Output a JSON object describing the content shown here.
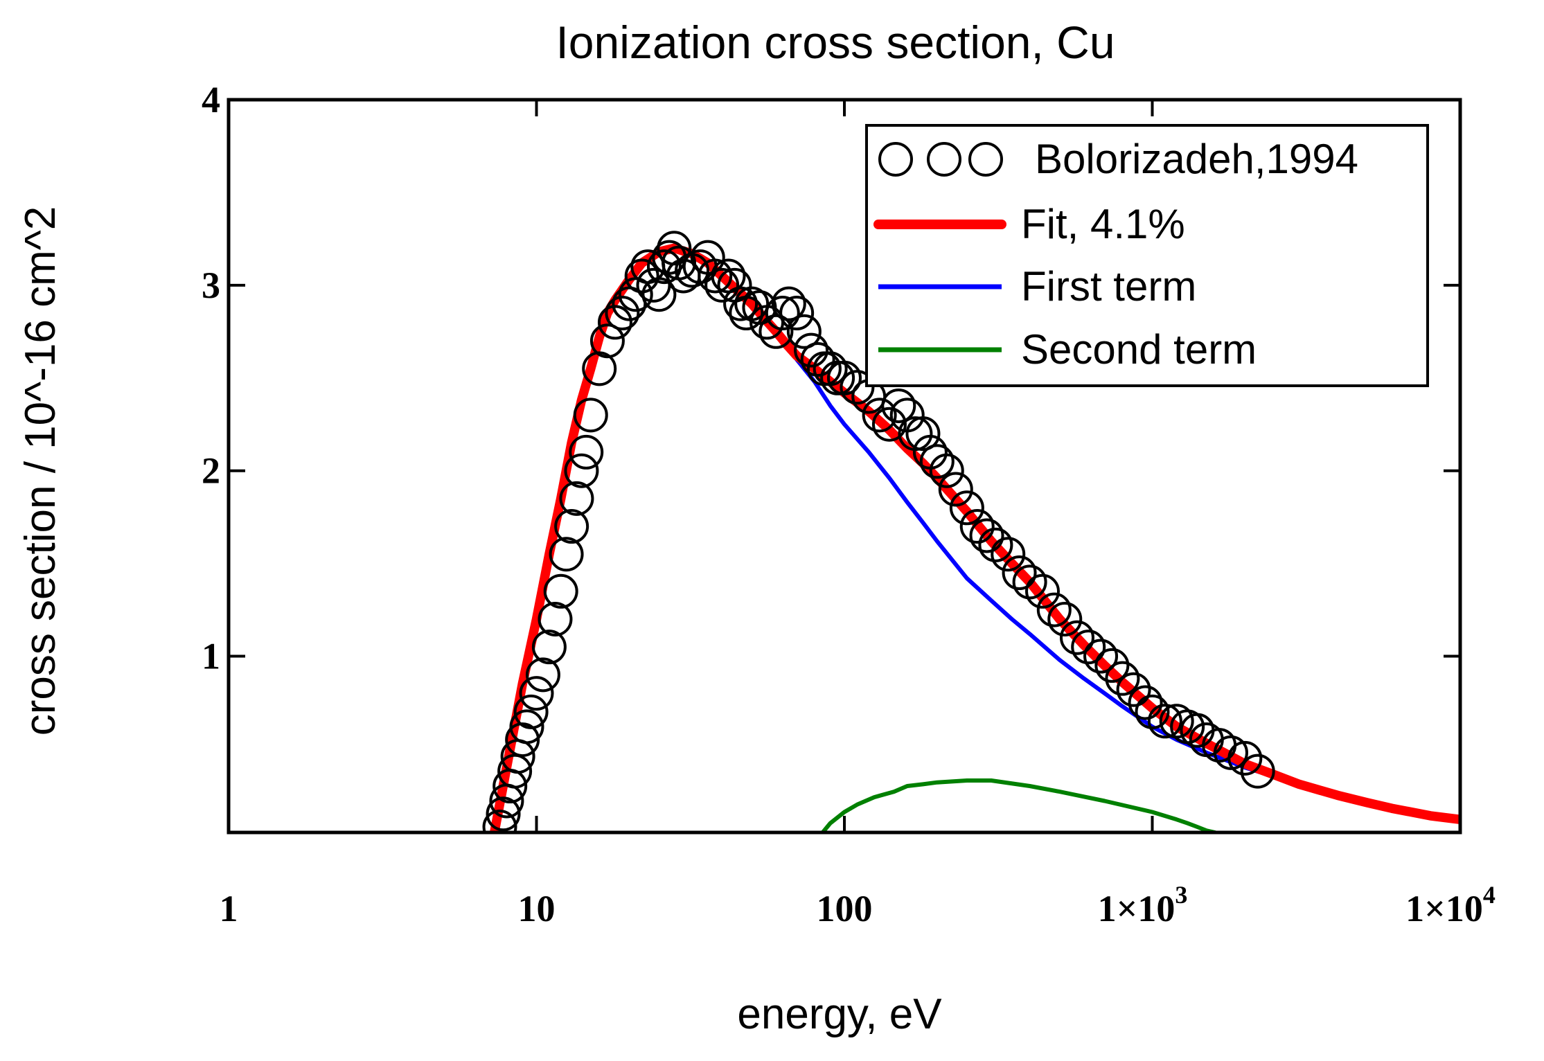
{
  "chart_data": {
    "type": "line",
    "title": "Ionization cross section, Cu",
    "xlabel": "energy, eV",
    "ylabel": "cross section / 10^-16 cm^2",
    "xscale": "log",
    "xlim": [
      1,
      10000
    ],
    "ylim": [
      0.05,
      4
    ],
    "grid": false,
    "legend_position": "top-right",
    "x_ticks": [
      {
        "value": 1,
        "label": "1"
      },
      {
        "value": 10,
        "label": "10"
      },
      {
        "value": 100,
        "label": "100"
      },
      {
        "value": 1000,
        "mant": "1×10",
        "exp": "3"
      },
      {
        "value": 10000,
        "mant": "1×10",
        "exp": "4"
      }
    ],
    "y_ticks": [
      {
        "value": 1,
        "label": "1"
      },
      {
        "value": 2,
        "label": "2"
      },
      {
        "value": 3,
        "label": "3"
      },
      {
        "value": 4,
        "label": "4"
      }
    ],
    "series": [
      {
        "name": "Bolorizadeh,1994",
        "style": "markers",
        "color": "#000000",
        "x": [
          7.6,
          7.8,
          8.0,
          8.2,
          8.5,
          8.7,
          9.0,
          9.3,
          9.6,
          10.0,
          10.5,
          11.0,
          11.5,
          12.0,
          12.5,
          13.0,
          13.5,
          14.0,
          14.5,
          15.0,
          16.0,
          17.0,
          18.0,
          19.0,
          20.0,
          21.0,
          22.0,
          23.0,
          24.0,
          25.0,
          26.0,
          27.0,
          28.0,
          29.0,
          30.0,
          32.0,
          34.0,
          36.0,
          38.0,
          40.0,
          42.0,
          44.0,
          46.0,
          48.0,
          50.0,
          53.0,
          56.0,
          60.0,
          63.0,
          66.0,
          70.0,
          74.0,
          78.0,
          82.0,
          86.0,
          90.0,
          95.0,
          100.0,
          110.0,
          120.0,
          130.0,
          140.0,
          150.0,
          160.0,
          170.0,
          180.0,
          190.0,
          200.0,
          215.0,
          230.0,
          250.0,
          270.0,
          290.0,
          310.0,
          340.0,
          370.0,
          400.0,
          440.0,
          480.0,
          520.0,
          570.0,
          620.0,
          680.0,
          740.0,
          800.0,
          870.0,
          950.0,
          1000.0,
          1100.0,
          1200.0,
          1300.0,
          1400.0,
          1500.0,
          1650.0,
          1800.0,
          2000.0,
          2200.0
        ],
        "y": [
          0.08,
          0.15,
          0.22,
          0.3,
          0.38,
          0.46,
          0.55,
          0.62,
          0.7,
          0.8,
          0.9,
          1.05,
          1.2,
          1.35,
          1.55,
          1.7,
          1.85,
          2.0,
          2.1,
          2.3,
          2.55,
          2.7,
          2.8,
          2.85,
          2.9,
          2.95,
          3.05,
          3.1,
          3.0,
          2.95,
          3.1,
          3.15,
          3.2,
          3.12,
          3.05,
          3.08,
          3.1,
          3.15,
          3.05,
          3.0,
          3.05,
          3.0,
          2.9,
          2.85,
          2.9,
          2.88,
          2.8,
          2.75,
          2.85,
          2.9,
          2.85,
          2.75,
          2.65,
          2.6,
          2.55,
          2.55,
          2.5,
          2.5,
          2.45,
          2.4,
          2.3,
          2.25,
          2.35,
          2.3,
          2.2,
          2.2,
          2.1,
          2.05,
          2.0,
          1.9,
          1.8,
          1.7,
          1.65,
          1.6,
          1.55,
          1.45,
          1.4,
          1.35,
          1.25,
          1.2,
          1.1,
          1.05,
          1.0,
          0.95,
          0.88,
          0.82,
          0.75,
          0.7,
          0.65,
          0.65,
          0.62,
          0.6,
          0.55,
          0.52,
          0.48,
          0.45,
          0.38
        ]
      },
      {
        "name": "Fit, 4.1%",
        "style": "line",
        "color": "#ff0000",
        "width": 4.5,
        "x": [
          7.3,
          8,
          9,
          10,
          11,
          12,
          13,
          14,
          15,
          16,
          17,
          18,
          20,
          22,
          25,
          28,
          32,
          36,
          40,
          45,
          50,
          55,
          60,
          65,
          70,
          80,
          90,
          100,
          120,
          140,
          160,
          180,
          200,
          250,
          300,
          350,
          400,
          500,
          600,
          700,
          800,
          1000,
          1200,
          1500,
          2000,
          2500,
          3000,
          4000,
          5000,
          6000,
          8000,
          10000
        ],
        "y": [
          0.05,
          0.4,
          0.85,
          1.2,
          1.55,
          1.85,
          2.15,
          2.38,
          2.55,
          2.72,
          2.85,
          2.92,
          3.03,
          3.12,
          3.18,
          3.2,
          3.17,
          3.12,
          3.05,
          2.97,
          2.9,
          2.82,
          2.75,
          2.68,
          2.62,
          2.55,
          2.48,
          2.42,
          2.32,
          2.22,
          2.12,
          2.04,
          1.96,
          1.78,
          1.62,
          1.5,
          1.4,
          1.2,
          1.06,
          0.95,
          0.86,
          0.72,
          0.62,
          0.53,
          0.42,
          0.36,
          0.31,
          0.25,
          0.21,
          0.18,
          0.14,
          0.12
        ]
      },
      {
        "name": "First term",
        "style": "line",
        "color": "#0000ff",
        "width": 2,
        "x": [
          7.3,
          8,
          9,
          10,
          11,
          12,
          13,
          14,
          15,
          16,
          17,
          18,
          20,
          22,
          25,
          28,
          32,
          36,
          40,
          45,
          50,
          55,
          60,
          65,
          70,
          80,
          90,
          100,
          120,
          140,
          160,
          180,
          200,
          250,
          300,
          350,
          400,
          500,
          600,
          700,
          800,
          1000,
          1200,
          1500,
          2000,
          2500,
          3000,
          4000,
          5000,
          6000,
          8000,
          10000
        ],
        "y": [
          0.05,
          0.4,
          0.85,
          1.2,
          1.55,
          1.85,
          2.15,
          2.38,
          2.55,
          2.72,
          2.85,
          2.92,
          3.03,
          3.12,
          3.18,
          3.2,
          3.17,
          3.12,
          3.05,
          2.97,
          2.9,
          2.82,
          2.75,
          2.68,
          2.6,
          2.48,
          2.35,
          2.25,
          2.1,
          1.96,
          1.83,
          1.72,
          1.62,
          1.42,
          1.3,
          1.2,
          1.12,
          0.98,
          0.88,
          0.8,
          0.73,
          0.62,
          0.55,
          0.48,
          0.4,
          0.35,
          0.3,
          0.24,
          0.2,
          0.17,
          0.14,
          0.11
        ]
      },
      {
        "name": "Second term",
        "style": "line",
        "color": "#008000",
        "width": 2,
        "x": [
          85,
          90,
          100,
          110,
          125,
          145,
          160,
          180,
          200,
          250,
          300,
          400,
          500,
          700,
          1000,
          1200,
          1300,
          1400,
          1500,
          1600
        ],
        "y": [
          0.05,
          0.1,
          0.16,
          0.2,
          0.24,
          0.27,
          0.3,
          0.31,
          0.32,
          0.33,
          0.33,
          0.3,
          0.27,
          0.22,
          0.16,
          0.12,
          0.1,
          0.08,
          0.06,
          0.05
        ]
      }
    ]
  }
}
